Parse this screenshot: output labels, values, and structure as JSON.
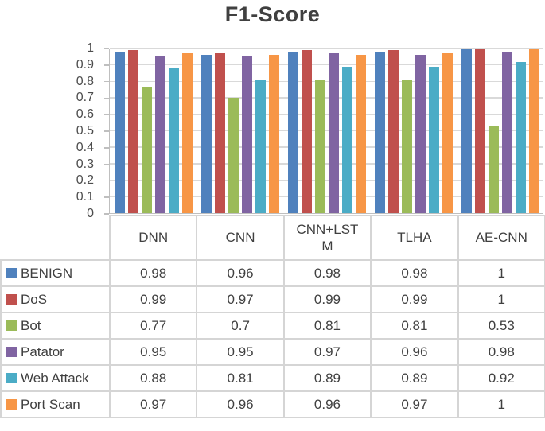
{
  "title": "F1-Score",
  "chart_data": {
    "type": "bar",
    "title": "F1-Score",
    "categories": [
      "DNN",
      "CNN",
      "CNN+LSTM",
      "TLHA",
      "AE-CNN"
    ],
    "series": [
      {
        "name": "BENIGN",
        "color": "#4F81BD",
        "values": [
          0.98,
          0.96,
          0.98,
          0.98,
          1
        ]
      },
      {
        "name": "DoS",
        "color": "#C0504D",
        "values": [
          0.99,
          0.97,
          0.99,
          0.99,
          1
        ]
      },
      {
        "name": "Bot",
        "color": "#9BBB59",
        "values": [
          0.77,
          0.7,
          0.81,
          0.81,
          0.53
        ]
      },
      {
        "name": "Patator",
        "color": "#8064A2",
        "values": [
          0.95,
          0.95,
          0.97,
          0.96,
          0.98
        ]
      },
      {
        "name": "Web Attack",
        "color": "#4BACC6",
        "values": [
          0.88,
          0.81,
          0.89,
          0.89,
          0.92
        ]
      },
      {
        "name": "Port Scan",
        "color": "#F79646",
        "values": [
          0.97,
          0.96,
          0.96,
          0.97,
          1
        ]
      }
    ],
    "xlabel": "",
    "ylabel": "",
    "ylim": [
      0,
      1
    ],
    "y_ticks": [
      1,
      0.9,
      0.8,
      0.7,
      0.6,
      0.5,
      0.4,
      0.3,
      0.2,
      0.1,
      0
    ],
    "grid": true,
    "legend_position": "data-table-row-headers",
    "colors": {
      "gridline": "#D9D9D9",
      "axis_line": "#BFBFBF",
      "axis_text": "#4D4D4D",
      "table_border": "#D5D5D5",
      "table_text": "#404040",
      "title_text": "#404040"
    }
  }
}
